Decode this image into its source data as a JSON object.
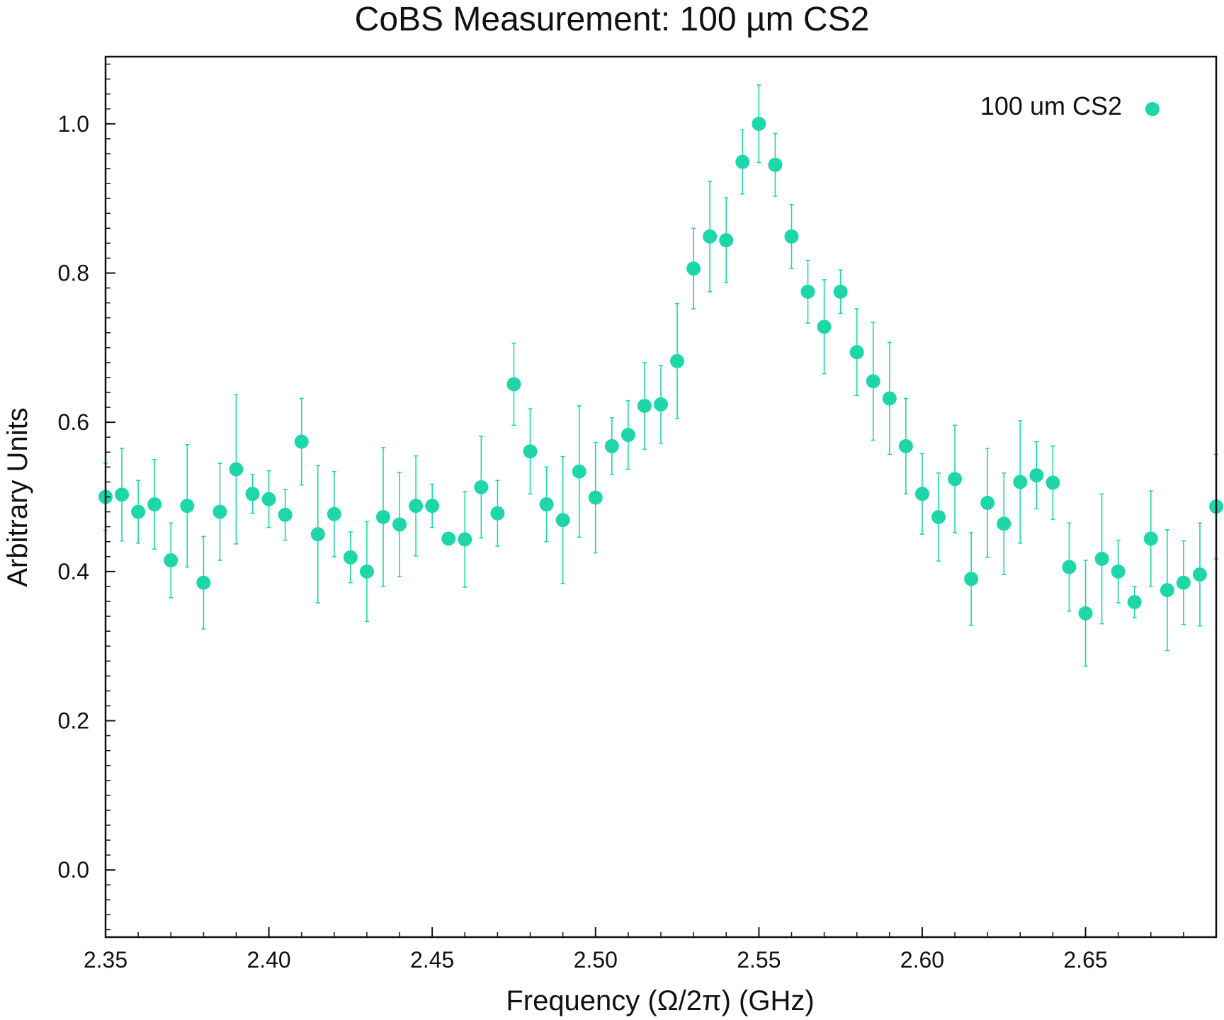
{
  "chart_data": {
    "type": "scatter",
    "title": "CoBS Measurement: 100 µm CS2",
    "xlabel": "Frequency (Ω/2π) (GHz)",
    "ylabel": "Arbitrary Units",
    "xlim": [
      2.35,
      2.69
    ],
    "ylim": [
      -0.09,
      1.09
    ],
    "xticks": [
      2.35,
      2.4,
      2.45,
      2.5,
      2.55,
      2.6,
      2.65
    ],
    "xtick_labels": [
      "2.35",
      "2.40",
      "2.45",
      "2.50",
      "2.55",
      "2.60",
      "2.65"
    ],
    "yticks": [
      0.0,
      0.2,
      0.4,
      0.6,
      0.8,
      1.0
    ],
    "ytick_labels": [
      "0.0",
      "0.2",
      "0.4",
      "0.6",
      "0.8",
      "1.0"
    ],
    "grid": false,
    "legend_position": "top-right",
    "series": [
      {
        "name": "100 um CS2",
        "color": "#1ed6a8",
        "marker": "circle",
        "x": [
          2.35,
          2.355,
          2.36,
          2.365,
          2.37,
          2.375,
          2.38,
          2.385,
          2.39,
          2.395,
          2.4,
          2.405,
          2.41,
          2.415,
          2.42,
          2.425,
          2.43,
          2.435,
          2.44,
          2.445,
          2.45,
          2.455,
          2.46,
          2.465,
          2.47,
          2.475,
          2.48,
          2.485,
          2.49,
          2.495,
          2.5,
          2.505,
          2.51,
          2.515,
          2.52,
          2.525,
          2.53,
          2.535,
          2.54,
          2.545,
          2.55,
          2.555,
          2.56,
          2.565,
          2.57,
          2.575,
          2.58,
          2.585,
          2.59,
          2.595,
          2.6,
          2.605,
          2.61,
          2.615,
          2.62,
          2.625,
          2.63,
          2.635,
          2.64,
          2.645,
          2.65,
          2.655,
          2.66,
          2.665,
          2.67,
          2.675,
          2.68,
          2.685,
          2.69
        ],
        "y": [
          0.5,
          0.503,
          0.48,
          0.49,
          0.415,
          0.488,
          0.385,
          0.48,
          0.537,
          0.504,
          0.497,
          0.476,
          0.574,
          0.45,
          0.477,
          0.419,
          0.4,
          0.473,
          0.463,
          0.488,
          0.488,
          0.444,
          0.443,
          0.513,
          0.478,
          0.651,
          0.561,
          0.49,
          0.469,
          0.534,
          0.499,
          0.568,
          0.583,
          0.622,
          0.624,
          0.682,
          0.806,
          0.849,
          0.844,
          0.949,
          1.0,
          0.945,
          0.849,
          0.775,
          0.728,
          0.775,
          0.694,
          0.655,
          0.632,
          0.568,
          0.504,
          0.473,
          0.524,
          0.39,
          0.492,
          0.464,
          0.52,
          0.529,
          0.519,
          0.406,
          0.344,
          0.417,
          0.4,
          0.359,
          0.444,
          0.375,
          0.385,
          0.396,
          0.487
        ],
        "yerr": [
          0.045,
          0.062,
          0.042,
          0.06,
          0.05,
          0.082,
          0.062,
          0.065,
          0.1,
          0.026,
          0.038,
          0.034,
          0.058,
          0.092,
          0.057,
          0.034,
          0.067,
          0.093,
          0.07,
          0.067,
          0.029,
          0.0,
          0.064,
          0.068,
          0.044,
          0.055,
          0.057,
          0.05,
          0.085,
          0.088,
          0.074,
          0.038,
          0.046,
          0.058,
          0.052,
          0.077,
          0.054,
          0.074,
          0.057,
          0.043,
          0.052,
          0.042,
          0.043,
          0.042,
          0.063,
          0.029,
          0.058,
          0.079,
          0.075,
          0.064,
          0.054,
          0.059,
          0.072,
          0.062,
          0.073,
          0.068,
          0.082,
          0.045,
          0.049,
          0.059,
          0.071,
          0.087,
          0.042,
          0.021,
          0.064,
          0.081,
          0.056,
          0.069,
          0.07
        ]
      }
    ]
  }
}
